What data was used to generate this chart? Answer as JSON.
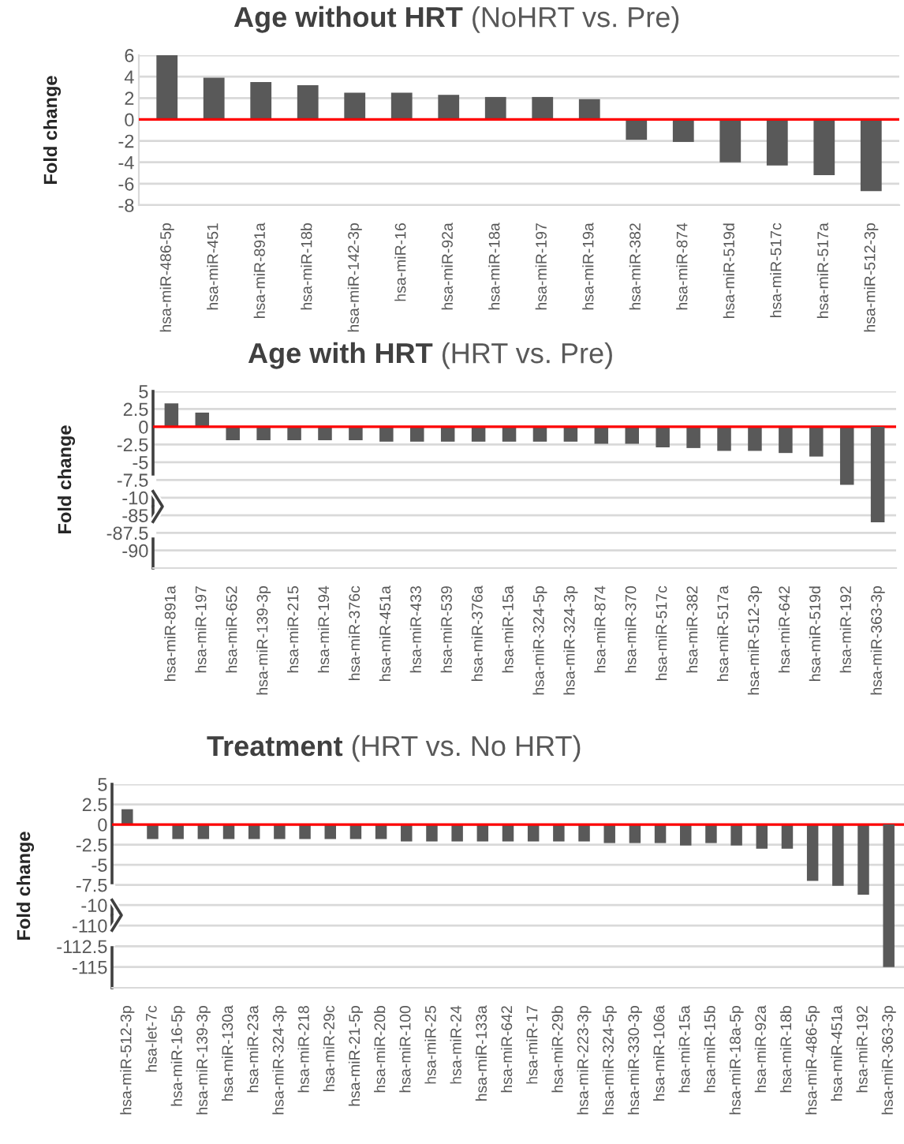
{
  "chart_data": [
    {
      "type": "bar",
      "title": "Age without HRT",
      "subtitle": "(NoHRT vs. Pre)",
      "ylabel": "Fold change",
      "categories": [
        "hsa-miR-486-5p",
        "hsa-miR-451",
        "hsa-miR-891a",
        "hsa-miR-18b",
        "hsa-miR-142-3p",
        "hsa-miR-16",
        "hsa-miR-92a",
        "hsa-miR-18a",
        "hsa-miR-197",
        "hsa-miR-19a",
        "hsa-miR-382",
        "hsa-miR-874",
        "hsa-miR-519d",
        "hsa-miR-517c",
        "hsa-miR-517a",
        "hsa-miR-512-3p"
      ],
      "values": [
        6.0,
        3.9,
        3.5,
        3.2,
        2.5,
        2.5,
        2.3,
        2.1,
        2.1,
        1.9,
        -1.9,
        -2.1,
        -4.0,
        -4.3,
        -5.2,
        -6.7
      ],
      "color": "#595959",
      "ylim": [
        -8,
        6
      ],
      "yticks": [
        -8,
        -6,
        -4,
        -2,
        0,
        2,
        4,
        6
      ],
      "grid": "y",
      "ref_lines": [
        {
          "axis": "y",
          "value": 0,
          "color": "#ff0000"
        }
      ]
    },
    {
      "type": "bar",
      "title": "Age with HRT",
      "subtitle": "(HRT vs. Pre)",
      "ylabel": "Fold change",
      "values": [
        3.3,
        2.0,
        -1.9,
        -1.9,
        -1.9,
        -1.9,
        -1.9,
        -2.1,
        -2.1,
        -2.1,
        -2.1,
        -2.1,
        -2.1,
        -2.1,
        -2.4,
        -2.4,
        -2.9,
        -3.0,
        -3.4,
        -3.4,
        -3.7,
        -4.2,
        -8.2,
        null
      ],
      "color": "#595959",
      "ylim": [
        -11.25,
        5
      ],
      "yticks": [
        -10,
        -7.5,
        -5,
        -2.5,
        0,
        2.5,
        5
      ],
      "grid": "y",
      "tick_labels": "y",
      "ref_lines": [
        {
          "axis": "y",
          "value": 0,
          "color": "#ff0000"
        }
      ]
    },
    {
      "type": "bar",
      "categories": [
        "hsa-miR-891a",
        "hsa-miR-197",
        "hsa-miR-652",
        "hsa-miR-139-3p",
        "hsa-miR-215",
        "hsa-miR-194",
        "hsa-miR-376c",
        "hsa-miR-451a",
        "hsa-miR-433",
        "hsa-miR-539",
        "hsa-miR-376a",
        "hsa-miR-15a",
        "hsa-miR-324-5p",
        "hsa-miR-324-3p",
        "hsa-miR-874",
        "hsa-miR-370",
        "hsa-miR-517c",
        "hsa-miR-382",
        "hsa-miR-517a",
        "hsa-miR-512-3p",
        "hsa-miR-642",
        "hsa-miR-519d",
        "hsa-miR-192",
        "hsa-miR-363-3p"
      ],
      "values": [
        null,
        null,
        null,
        null,
        null,
        null,
        null,
        null,
        null,
        null,
        null,
        null,
        null,
        null,
        null,
        null,
        null,
        null,
        null,
        null,
        null,
        null,
        null,
        -86
      ],
      "color": "#595959",
      "ylim": [
        -92.5,
        -83.75
      ],
      "yticks": [
        -90,
        -87.5,
        -85
      ],
      "grid": "y"
    },
    {
      "type": "bar",
      "title": "Treatment",
      "subtitle": "(HRT vs. No HRT)",
      "ylabel": "Fold change",
      "values": [
        1.9,
        -1.8,
        -1.8,
        -1.8,
        -1.8,
        -1.8,
        -1.8,
        -1.8,
        -1.8,
        -1.8,
        -1.8,
        -2.1,
        -2.1,
        -2.1,
        -2.1,
        -2.1,
        -2.1,
        -2.1,
        -2.1,
        -2.3,
        -2.3,
        -2.3,
        -2.6,
        -2.3,
        -2.6,
        -3.0,
        -3.0,
        -7.0,
        -7.6,
        -8.7,
        null
      ],
      "color": "#595959",
      "ylim": [
        -11.25,
        5
      ],
      "yticks": [
        -10,
        -7.5,
        -5,
        -2.5,
        0,
        2.5,
        5
      ],
      "grid": "y",
      "tick_labels": "y",
      "ref_lines": [
        {
          "axis": "y",
          "value": 0,
          "color": "#ff0000"
        }
      ]
    },
    {
      "type": "bar",
      "categories": [
        "hsa-miR-512-3p",
        "hsa-let-7c",
        "hsa-miR-16-5p",
        "hsa-miR-139-3p",
        "hsa-miR-130a",
        "hsa-miR-23a",
        "hsa-miR-324-3p",
        "hsa-miR-218",
        "hsa-miR-29c",
        "hsa-miR-21-5p",
        "hsa-miR-20b",
        "hsa-miR-100",
        "hsa-miR-25",
        "hsa-miR-24",
        "hsa-miR-133a",
        "hsa-miR-642",
        "hsa-miR-17",
        "hsa-miR-29b",
        "hsa-miR-223-3p",
        "hsa-miR-324-5p",
        "hsa-miR-330-3p",
        "hsa-miR-106a",
        "hsa-miR-15a",
        "hsa-miR-15b",
        "hsa-miR-18a-5p",
        "hsa-miR-92a",
        "hsa-miR-18b",
        "hsa-miR-486-5p",
        "hsa-miR-451a",
        "hsa-miR-192",
        "hsa-miR-363-3p"
      ],
      "values": [
        null,
        null,
        null,
        null,
        null,
        null,
        null,
        null,
        null,
        null,
        null,
        null,
        null,
        null,
        null,
        null,
        null,
        null,
        null,
        null,
        null,
        null,
        null,
        null,
        null,
        null,
        null,
        null,
        null,
        null,
        -115
      ],
      "color": "#595959",
      "ylim": [
        -117.5,
        -108.75
      ],
      "yticks": [
        -115,
        -112.5,
        -110
      ],
      "grid": "y"
    }
  ]
}
